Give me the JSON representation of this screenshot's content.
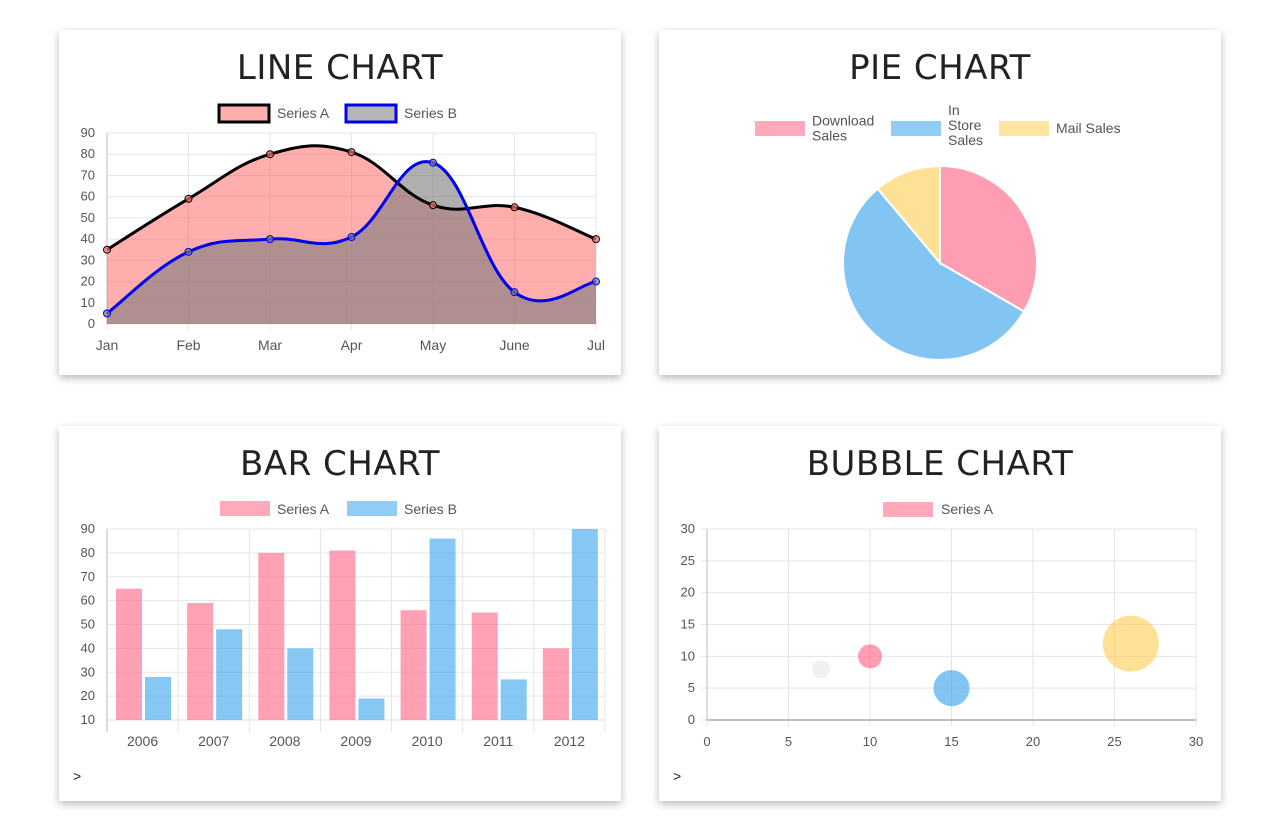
{
  "colors": {
    "pink": "#ff6384",
    "blue": "#36a2eb",
    "yellow": "#ffce56",
    "grey": "#c9cbcf",
    "grid": "#e5e5e5",
    "axis": "#666666",
    "text": "#555555"
  },
  "line": {
    "title": "LINE CHART",
    "chart_data": {
      "type": "line",
      "categories": [
        "Jan",
        "Feb",
        "Mar",
        "Apr",
        "May",
        "June",
        "Jul"
      ],
      "series": [
        {
          "name": "Series A",
          "values": [
            35,
            59,
            80,
            81,
            56,
            55,
            40
          ],
          "stroke": "#000000",
          "fill": "#ff6b6b"
        },
        {
          "name": "Series B",
          "values": [
            5,
            34,
            40,
            41,
            76,
            15,
            20
          ],
          "stroke": "#0000ee",
          "fill": "#7a7a7a"
        }
      ],
      "ylim": [
        0,
        90
      ],
      "yticks": [
        0,
        10,
        20,
        30,
        40,
        50,
        60,
        70,
        80,
        90
      ],
      "grid": true,
      "legend": "top"
    }
  },
  "pie": {
    "title": "PIE CHART",
    "chart_data": {
      "type": "pie",
      "categories": [
        "Download Sales",
        "In Store Sales",
        "Mail Sales"
      ],
      "legend_lines": [
        [
          "Download",
          "Sales"
        ],
        [
          "In",
          "Store",
          "Sales"
        ],
        [
          "Mail Sales"
        ]
      ],
      "values": [
        300,
        500,
        100
      ],
      "colors": [
        "#ff6384",
        "#36a2eb",
        "#ffce56"
      ],
      "legend": "top"
    }
  },
  "bar": {
    "title": "BAR CHART",
    "arrow": ">",
    "chart_data": {
      "type": "bar",
      "categories": [
        "2006",
        "2007",
        "2008",
        "2009",
        "2010",
        "2011",
        "2012"
      ],
      "series": [
        {
          "name": "Series A",
          "values": [
            65,
            59,
            80,
            81,
            56,
            55,
            40
          ],
          "color": "#ff6384"
        },
        {
          "name": "Series B",
          "values": [
            28,
            48,
            40,
            19,
            86,
            27,
            90
          ],
          "color": "#36a2eb"
        }
      ],
      "ylim": [
        10,
        90
      ],
      "yticks": [
        10,
        20,
        30,
        40,
        50,
        60,
        70,
        80,
        90
      ],
      "grid": true,
      "legend": "top"
    }
  },
  "bubble": {
    "title": "BUBBLE CHART",
    "arrow": ">",
    "chart_data": {
      "type": "scatter",
      "series": [
        {
          "name": "Series A",
          "color": "#ff6384",
          "points": [
            {
              "x": 7,
              "y": 8,
              "r": 9,
              "color": "#e6e6e6"
            },
            {
              "x": 10,
              "y": 10,
              "r": 12,
              "color": "#ff6384"
            },
            {
              "x": 15,
              "y": 5,
              "r": 18,
              "color": "#36a2eb"
            },
            {
              "x": 26,
              "y": 12,
              "r": 28,
              "color": "#ffce56"
            }
          ]
        }
      ],
      "xlim": [
        0,
        30
      ],
      "ylim": [
        0,
        30
      ],
      "xticks": [
        0,
        5,
        10,
        15,
        20,
        25,
        30
      ],
      "yticks": [
        0,
        5,
        10,
        15,
        20,
        25,
        30
      ],
      "grid": true,
      "legend": "top"
    }
  }
}
